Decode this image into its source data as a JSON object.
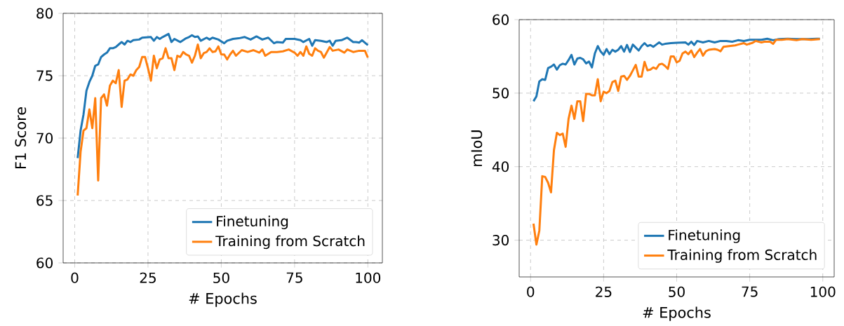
{
  "chart_data": [
    {
      "type": "line",
      "xlabel": "# Epochs",
      "ylabel": "F1 Score",
      "xlim": [
        -3.95,
        104.95
      ],
      "ylim": [
        60,
        80
      ],
      "xticks": [
        0,
        25,
        50,
        75,
        100
      ],
      "yticks": [
        60,
        65,
        70,
        75,
        80
      ],
      "grid": true,
      "legend": "bottom right",
      "series": [
        {
          "name": "Finetuning",
          "color": "#1f77b4",
          "x": [
            1,
            2,
            3,
            4,
            5,
            6,
            7,
            8,
            9,
            10,
            11,
            12,
            13,
            14,
            15,
            16,
            17,
            18,
            19,
            20,
            22,
            23,
            26,
            27,
            28,
            29,
            30,
            32,
            33,
            34,
            36,
            38,
            39,
            40,
            41,
            42,
            43,
            45,
            46,
            47,
            49,
            51,
            52,
            54,
            56,
            58,
            60,
            62,
            64,
            66,
            68,
            69,
            71,
            72,
            75,
            77,
            78,
            80,
            81,
            82,
            84,
            86,
            87,
            88,
            89,
            91,
            93,
            95,
            96,
            97,
            98,
            100
          ],
          "values": [
            68.4,
            70.6,
            71.9,
            73.8,
            74.5,
            75.0,
            75.8,
            75.9,
            76.5,
            76.7,
            76.85,
            77.2,
            77.2,
            77.3,
            77.5,
            77.7,
            77.5,
            77.8,
            77.7,
            77.85,
            77.9,
            78.05,
            78.1,
            77.8,
            78.1,
            77.95,
            78.1,
            78.35,
            77.7,
            77.95,
            77.7,
            78.0,
            78.1,
            78.25,
            78.1,
            78.15,
            77.8,
            78.05,
            77.9,
            78.05,
            77.9,
            77.6,
            77.8,
            77.95,
            78.0,
            78.1,
            77.9,
            78.15,
            77.9,
            78.05,
            77.6,
            77.7,
            77.65,
            77.95,
            77.95,
            77.85,
            77.7,
            77.95,
            77.4,
            77.85,
            77.8,
            77.7,
            77.8,
            77.4,
            77.8,
            77.85,
            78.05,
            77.7,
            77.7,
            77.65,
            77.85,
            77.45
          ]
        },
        {
          "name": "Training from Scratch",
          "color": "#ff7f0e",
          "x": [
            1,
            2,
            3,
            4,
            5,
            6,
            7,
            8,
            9,
            10,
            11,
            12,
            13,
            14,
            15,
            16,
            17,
            18,
            19,
            20,
            21,
            22,
            23,
            24,
            25,
            26,
            27,
            28,
            29,
            30,
            31,
            32,
            33,
            34,
            35,
            36,
            37,
            38,
            39,
            40,
            41,
            42,
            43,
            44,
            45,
            46,
            47,
            48,
            49,
            50,
            51,
            52,
            53,
            54,
            55,
            57,
            59,
            61,
            63,
            64,
            65,
            67,
            69,
            71,
            73,
            75,
            76,
            77,
            78,
            79,
            80,
            81,
            82,
            83,
            84,
            85,
            87,
            88,
            90,
            92,
            93,
            95,
            97,
            99,
            100
          ],
          "values": [
            65.4,
            68.9,
            70.6,
            70.8,
            72.3,
            70.8,
            73.2,
            66.6,
            73.2,
            73.5,
            72.6,
            74.2,
            74.6,
            74.4,
            75.45,
            72.5,
            74.6,
            74.7,
            75.1,
            75.0,
            75.45,
            75.7,
            76.5,
            76.5,
            75.6,
            74.6,
            76.6,
            75.6,
            76.3,
            76.4,
            77.2,
            76.4,
            76.4,
            75.45,
            76.6,
            76.5,
            76.9,
            76.7,
            76.6,
            76.05,
            76.6,
            77.5,
            76.4,
            76.8,
            76.9,
            77.2,
            76.9,
            76.95,
            77.35,
            76.7,
            76.7,
            76.3,
            76.7,
            77.0,
            76.6,
            77.05,
            76.9,
            77.05,
            76.85,
            77.1,
            76.6,
            76.9,
            76.9,
            76.95,
            77.1,
            76.85,
            76.6,
            76.9,
            76.6,
            77.35,
            76.75,
            76.6,
            77.2,
            77.0,
            76.9,
            76.45,
            77.3,
            77.0,
            77.1,
            76.85,
            77.1,
            76.9,
            77.0,
            77.0,
            76.45
          ]
        }
      ]
    },
    {
      "type": "line",
      "xlabel": "# Epochs",
      "ylabel": "mIoU",
      "xlim": [
        -3.9,
        103.9
      ],
      "ylim": [
        25,
        60
      ],
      "xticks": [
        0,
        25,
        50,
        75,
        100
      ],
      "yticks": [
        30,
        40,
        50,
        60
      ],
      "grid": true,
      "legend": "bottom right",
      "series": [
        {
          "name": "Finetuning",
          "color": "#1f77b4",
          "x": [
            1,
            2,
            3,
            4,
            5,
            6,
            7,
            8,
            9,
            10,
            11,
            12,
            13,
            14,
            15,
            16,
            17,
            18,
            19,
            20,
            21,
            22,
            23,
            24,
            25,
            26,
            27,
            28,
            29,
            30,
            31,
            32,
            33,
            34,
            35,
            36,
            37,
            38,
            39,
            40,
            41,
            42,
            43,
            44,
            45,
            46,
            48,
            50,
            53,
            54,
            55,
            56,
            57,
            59,
            61,
            63,
            65,
            67,
            69,
            71,
            73,
            75,
            79,
            81,
            83,
            85,
            88,
            91,
            95,
            98,
            99
          ],
          "values": [
            48.9,
            49.55,
            51.6,
            51.9,
            51.8,
            53.4,
            53.6,
            53.9,
            53.2,
            53.8,
            54.0,
            53.9,
            54.5,
            55.2,
            53.9,
            54.7,
            54.8,
            54.6,
            54.05,
            54.3,
            53.5,
            55.4,
            56.4,
            55.65,
            55.2,
            56.0,
            55.3,
            55.9,
            55.65,
            55.9,
            56.4,
            55.65,
            56.55,
            55.6,
            56.6,
            56.2,
            55.8,
            56.4,
            56.8,
            56.4,
            56.55,
            56.3,
            56.6,
            56.9,
            56.6,
            56.7,
            56.8,
            56.85,
            56.9,
            56.6,
            57.0,
            56.55,
            57.1,
            56.9,
            57.1,
            56.9,
            57.1,
            57.1,
            57.0,
            57.2,
            57.1,
            57.25,
            57.25,
            57.4,
            57.2,
            57.35,
            57.4,
            57.35,
            57.35,
            57.4,
            57.4
          ]
        },
        {
          "name": "Training from Scratch",
          "color": "#ff7f0e",
          "x": [
            1,
            2,
            3,
            4,
            5,
            6,
            7,
            8,
            9,
            10,
            11,
            12,
            13,
            14,
            15,
            16,
            17,
            18,
            19,
            20,
            21,
            22,
            23,
            24,
            25,
            26,
            27,
            28,
            29,
            30,
            31,
            32,
            33,
            34,
            35,
            36,
            37,
            38,
            39,
            40,
            41,
            42,
            43,
            44,
            45,
            46,
            47,
            48,
            49,
            50,
            51,
            52,
            53,
            54,
            55,
            56,
            57,
            58,
            59,
            60,
            61,
            63,
            64,
            65,
            66,
            68,
            70,
            71,
            73,
            74,
            76,
            77,
            79,
            80,
            82,
            83,
            84,
            86,
            88,
            91,
            93,
            96,
            99
          ],
          "values": [
            32.25,
            29.4,
            31.3,
            38.7,
            38.6,
            37.8,
            36.5,
            42.25,
            44.6,
            44.3,
            44.5,
            42.7,
            46.5,
            48.3,
            46.5,
            48.9,
            48.9,
            46.2,
            49.9,
            49.9,
            49.7,
            49.7,
            51.9,
            48.9,
            50.2,
            50.0,
            50.3,
            51.5,
            51.7,
            50.3,
            52.25,
            52.35,
            51.8,
            52.35,
            53.1,
            53.85,
            52.25,
            52.25,
            54.25,
            53.1,
            53.2,
            53.5,
            53.3,
            53.9,
            54.0,
            53.7,
            53.3,
            55.0,
            55.0,
            54.2,
            54.4,
            55.4,
            55.65,
            55.3,
            55.8,
            54.9,
            55.5,
            56.0,
            55.1,
            55.7,
            55.9,
            56.0,
            55.9,
            55.7,
            56.3,
            56.4,
            56.5,
            56.6,
            56.8,
            56.6,
            56.85,
            57.1,
            56.9,
            57.0,
            57.0,
            56.7,
            57.25,
            57.25,
            57.35,
            57.2,
            57.35,
            57.25,
            57.35
          ]
        }
      ]
    }
  ]
}
